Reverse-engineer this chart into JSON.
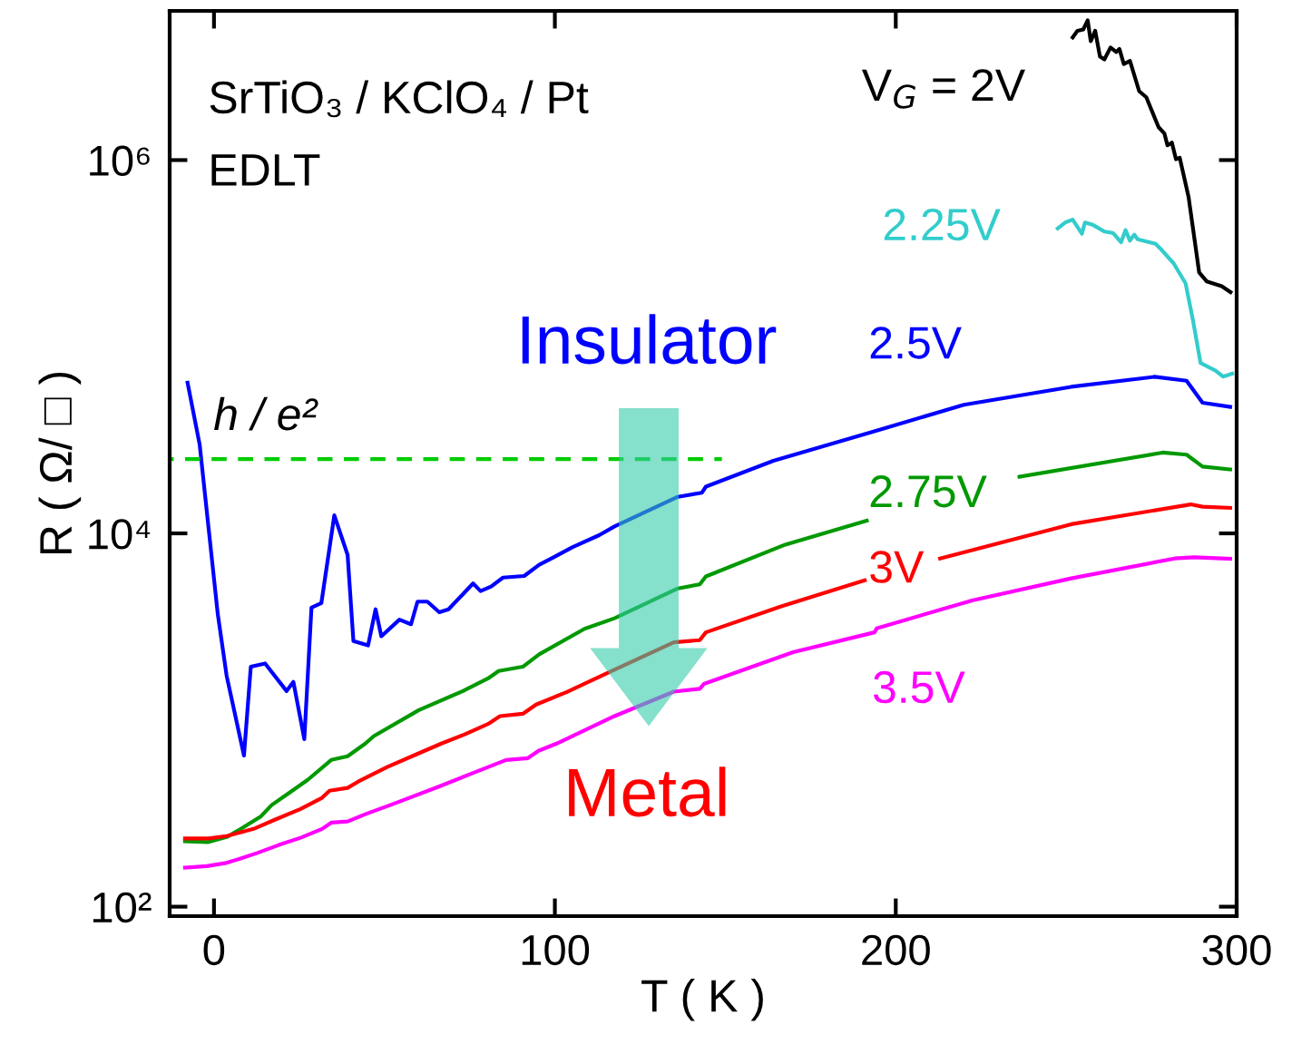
{
  "chart_data": {
    "type": "line",
    "xlabel": "T ( K )",
    "ylabel": "R ( Ω/ □ )",
    "log": "y",
    "grid": false,
    "xlim": [
      -13,
      300
    ],
    "xticks": [
      0,
      100,
      200,
      300
    ],
    "ylim": [
      89,
      6300000
    ],
    "yticks": [
      {
        "value": 100,
        "label": "10²"
      },
      {
        "value": 10000,
        "label": "10⁴"
      },
      {
        "value": 1000000,
        "label": "10⁶"
      }
    ],
    "annotations": [
      "SrTiO₃ / KClO₄ / Pt",
      "EDLT",
      "Insulator",
      "Metal",
      "h / e²"
    ],
    "series": [
      {
        "name": "V$_{G}$ = 2V",
        "color": "#000000",
        "x": [
          251.9,
          253.3,
          255.0,
          256.3,
          257.2,
          258.5,
          259.9,
          261.2,
          263.0,
          264.7,
          265.6,
          266.9,
          268.7,
          271.4,
          273.5,
          277.1,
          278.8,
          279.7,
          281.0,
          282.2,
          283.3,
          285.9,
          289.0,
          291.2,
          295.6,
          298.2
        ],
        "values": [
          4540000,
          4930000,
          5010000,
          5610000,
          4330000,
          4930000,
          3590000,
          3460000,
          4010000,
          3790000,
          3940000,
          3270000,
          3400000,
          2340000,
          2170000,
          1500000,
          1390000,
          1200000,
          1240000,
          1010000,
          1030000,
          634000,
          250000,
          224000,
          211000,
          196000
        ]
      },
      {
        "name": "2.25V",
        "color": "#33cccc",
        "x": [
          247.5,
          249.7,
          251.9,
          254.6,
          255.5,
          257.7,
          261.2,
          263.8,
          266.1,
          267.4,
          268.7,
          270.0,
          270.9,
          276.2,
          278.0,
          281.5,
          285.0,
          287.2,
          289.4,
          293.8,
          296.0,
          298.7
        ],
        "values": [
          430000,
          463000,
          480000,
          403000,
          463000,
          451000,
          414000,
          406000,
          363000,
          422000,
          370000,
          399000,
          377000,
          356000,
          330000,
          280000,
          219000,
          138000,
          81900,
          74500,
          69200,
          71800
        ]
      },
      {
        "name": "2.5V",
        "color": "#0000ff",
        "x": [
          -7.75,
          -4.2,
          1.1,
          3.7,
          8.8,
          10.8,
          15.0,
          21.3,
          23.3,
          26.5,
          28.6,
          31.5,
          35.3,
          39.2,
          40.9,
          45.2,
          47.4,
          49.1,
          54.4,
          57.8,
          59.7,
          62.6,
          66.1,
          68.8,
          76.0,
          78.2,
          81.3,
          84.8,
          91.0,
          95.4,
          99.4,
          105.1,
          113.0,
          117.5,
          136.1,
          143.1,
          144.3,
          164.1,
          194.4,
          220.0,
          251.5,
          275.9,
          285.3,
          290.0,
          298.1
        ],
        "values": [
          64100,
          29900,
          3710,
          1730,
          645,
          1930,
          2010,
          1430,
          1600,
          790,
          4000,
          4230,
          12500,
          7670,
          2650,
          2510,
          3920,
          2810,
          3450,
          3260,
          4310,
          4310,
          3780,
          3920,
          5390,
          4910,
          5190,
          5800,
          5910,
          6790,
          7400,
          8430,
          9780,
          10900,
          15700,
          16500,
          17800,
          24500,
          35500,
          48900,
          61000,
          69000,
          65700,
          50100,
          47600
        ]
      },
      {
        "name": "2.75V",
        "color": "#009900",
        "x": [
          -8.5,
          -1.6,
          3.7,
          7.9,
          13.8,
          16.9,
          22.2,
          27.5,
          34.4,
          39.2,
          44.4,
          46.9,
          60.1,
          73.4,
          80.4,
          83.5,
          90.6,
          95.4,
          108.7,
          117.5,
          136.1,
          142.5,
          144.3,
          167.6,
          191.5,
          205.0,
          236.3,
          278.3,
          285.3,
          290.0,
          298.1
        ],
        "values": [
          224,
          222,
          236,
          261,
          305,
          350,
          409,
          478,
          611,
          640,
          748,
          820,
          1130,
          1440,
          1670,
          1830,
          1930,
          2250,
          3080,
          3510,
          5070,
          5330,
          5880,
          8710,
          11700,
          null,
          20100,
          27100,
          26400,
          22800,
          22000
        ]
      },
      {
        "name": "3V",
        "color": "#ff0000",
        "x": [
          -8.5,
          -1.6,
          3.7,
          11.6,
          18.0,
          25.4,
          31.7,
          33.9,
          39.2,
          42.3,
          50.8,
          59.3,
          66.7,
          73.4,
          80.4,
          83.9,
          90.6,
          94.5,
          103.4,
          116.6,
          134.9,
          142.5,
          144.3,
          166.4,
          190.9,
          200.0,
          213.0,
          251.5,
          286.5,
          290.0,
          298.1
        ],
        "values": [
          232,
          232,
          239,
          261,
          293,
          334,
          383,
          418,
          433,
          468,
          560,
          654,
          748,
          836,
          952,
          1050,
          1080,
          1210,
          1410,
          1830,
          2610,
          2680,
          2950,
          4060,
          5600,
          null,
          7340,
          11200,
          14300,
          13900,
          13700
        ]
      },
      {
        "name": "3.5V",
        "color": "#ff00ff",
        "x": [
          -8.5,
          -2.1,
          3.2,
          7.4,
          12.7,
          19.0,
          25.4,
          31.7,
          34.4,
          39.2,
          44.4,
          52.9,
          65.6,
          76.2,
          85.7,
          92.1,
          95.2,
          100.5,
          117.5,
          134.9,
          142.5,
          143.7,
          169.9,
          193.8,
          194.4,
          222.4,
          251.5,
          281.8,
          287.6,
          298.1
        ],
        "values": [
          162,
          165,
          171,
          180,
          194,
          214,
          234,
          261,
          282,
          286,
          313,
          357,
          437,
          522,
          611,
          625,
          684,
          748,
          1050,
          1420,
          1470,
          1560,
          2310,
          2950,
          3100,
          4370,
          5740,
          7340,
          7450,
          7310
        ]
      },
      {
        "color": "#00cc00",
        "line_style": "dashed",
        "x": [
          -13,
          149
        ],
        "values": [
          25000,
          25000
        ]
      }
    ]
  }
}
